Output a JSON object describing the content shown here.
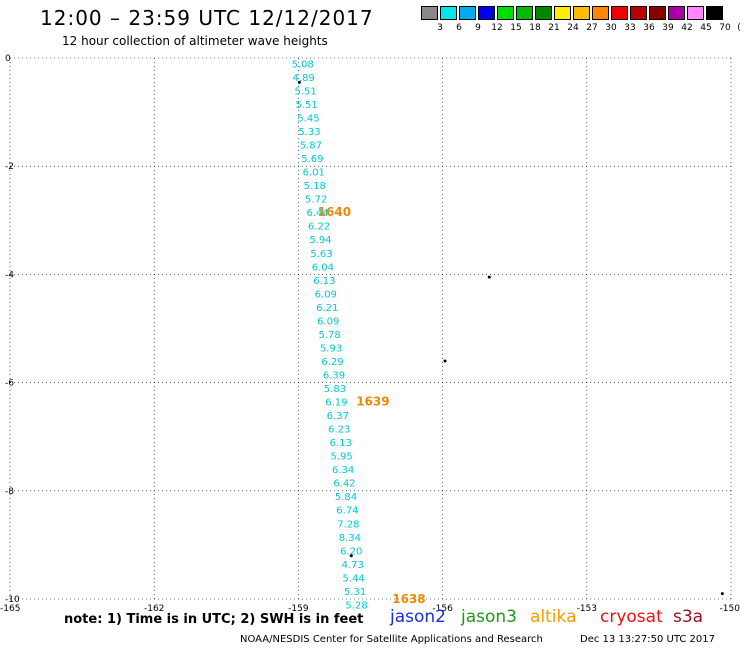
{
  "header": {
    "title": "12:00 – 23:59 UTC 12/12/2017",
    "subtitle": "12 hour collection of altimeter wave heights"
  },
  "scale": {
    "colors": [
      "#888888",
      "#00e8e8",
      "#00aaee",
      "#0000ee",
      "#00dd00",
      "#00bb00",
      "#008800",
      "#ffee00",
      "#ffbb00",
      "#ff8800",
      "#ee0000",
      "#bb0000",
      "#880000",
      "#aa00aa",
      "#ff88ff",
      "#000000"
    ],
    "labels": [
      "3",
      "6",
      "9",
      "12",
      "15",
      "18",
      "21",
      "24",
      "27",
      "30",
      "33",
      "36",
      "39",
      "42",
      "45",
      "70",
      "(ft)"
    ]
  },
  "chart_data": {
    "type": "scatter",
    "xlim": [
      -165,
      -150
    ],
    "ylim": [
      -10,
      0
    ],
    "x_tick_labels": [
      "-165",
      "-162",
      "-159",
      "-156",
      "-153",
      "-150"
    ],
    "y_tick_labels": [
      "0",
      "-2",
      "-4",
      "-6",
      "-8",
      "-10"
    ],
    "grid": true,
    "satellite": "jason3",
    "wave_heights_ft": [
      {
        "lon": -158.91,
        "lat": -0.1,
        "v": "5.08"
      },
      {
        "lon": -158.89,
        "lat": -0.35,
        "v": "4.89"
      },
      {
        "lon": -158.85,
        "lat": -0.6,
        "v": "5.51"
      },
      {
        "lon": -158.83,
        "lat": -0.85,
        "v": "5.51"
      },
      {
        "lon": -158.79,
        "lat": -1.1,
        "v": "5.45"
      },
      {
        "lon": -158.77,
        "lat": -1.35,
        "v": "5.33"
      },
      {
        "lon": -158.74,
        "lat": -1.6,
        "v": "5.87"
      },
      {
        "lon": -158.71,
        "lat": -1.85,
        "v": "5.69"
      },
      {
        "lon": -158.68,
        "lat": -2.1,
        "v": "6.01"
      },
      {
        "lon": -158.66,
        "lat": -2.35,
        "v": "5.18"
      },
      {
        "lon": -158.63,
        "lat": -2.6,
        "v": "5.72"
      },
      {
        "lon": -158.6,
        "lat": -2.85,
        "v": "6.44"
      },
      {
        "lon": -158.57,
        "lat": -3.1,
        "v": "6.22"
      },
      {
        "lon": -158.54,
        "lat": -3.35,
        "v": "5.94"
      },
      {
        "lon": -158.52,
        "lat": -3.6,
        "v": "5.63"
      },
      {
        "lon": -158.49,
        "lat": -3.85,
        "v": "6.04"
      },
      {
        "lon": -158.46,
        "lat": -4.1,
        "v": "6.13"
      },
      {
        "lon": -158.43,
        "lat": -4.35,
        "v": "6.09"
      },
      {
        "lon": -158.4,
        "lat": -4.6,
        "v": "6.21"
      },
      {
        "lon": -158.38,
        "lat": -4.85,
        "v": "6.09"
      },
      {
        "lon": -158.35,
        "lat": -5.1,
        "v": "5.78"
      },
      {
        "lon": -158.32,
        "lat": -5.35,
        "v": "5.93"
      },
      {
        "lon": -158.29,
        "lat": -5.6,
        "v": "6.29"
      },
      {
        "lon": -158.26,
        "lat": -5.85,
        "v": "6.39"
      },
      {
        "lon": -158.24,
        "lat": -6.1,
        "v": "5.83"
      },
      {
        "lon": -158.21,
        "lat": -6.35,
        "v": "6.19"
      },
      {
        "lon": -158.18,
        "lat": -6.6,
        "v": "6.37"
      },
      {
        "lon": -158.15,
        "lat": -6.85,
        "v": "6.23"
      },
      {
        "lon": -158.12,
        "lat": -7.1,
        "v": "6.13"
      },
      {
        "lon": -158.1,
        "lat": -7.35,
        "v": "5.95"
      },
      {
        "lon": -158.07,
        "lat": -7.6,
        "v": "6.34"
      },
      {
        "lon": -158.04,
        "lat": -7.85,
        "v": "6.42"
      },
      {
        "lon": -158.01,
        "lat": -8.1,
        "v": "5.84"
      },
      {
        "lon": -157.98,
        "lat": -8.35,
        "v": "6.74"
      },
      {
        "lon": -157.96,
        "lat": -8.6,
        "v": "7.28"
      },
      {
        "lon": -157.93,
        "lat": -8.85,
        "v": "8.34"
      },
      {
        "lon": -157.9,
        "lat": -9.1,
        "v": "6.20"
      },
      {
        "lon": -157.87,
        "lat": -9.35,
        "v": "4.73"
      },
      {
        "lon": -157.85,
        "lat": -9.6,
        "v": "5.44"
      },
      {
        "lon": -157.82,
        "lat": -9.85,
        "v": "5.31"
      },
      {
        "lon": -157.79,
        "lat": -10.1,
        "v": "5.28"
      }
    ],
    "time_labels": [
      {
        "lon": -158.25,
        "lat": -2.85,
        "text": "1640"
      },
      {
        "lon": -157.45,
        "lat": -6.35,
        "text": "1639"
      },
      {
        "lon": -156.7,
        "lat": -10.0,
        "text": "1638"
      }
    ],
    "land_dots": [
      {
        "lon": -158.98,
        "lat": -0.45
      },
      {
        "lon": -155.03,
        "lat": -4.05
      },
      {
        "lon": -155.95,
        "lat": -5.6
      },
      {
        "lon": -157.9,
        "lat": -9.2
      },
      {
        "lon": -150.18,
        "lat": -9.9
      }
    ]
  },
  "note": "note: 1) Time is in UTC; 2) SWH is in feet",
  "satellites": [
    {
      "name": "jason2",
      "color": "#1a2ee0"
    },
    {
      "name": "jason3",
      "color": "#1c9a1c"
    },
    {
      "name": "altika",
      "color": "#ff9900"
    },
    {
      "name": "cryosat",
      "color": "#ee1111"
    },
    {
      "name": "s3a",
      "color": "#9b1020"
    }
  ],
  "footer": {
    "center": "NOAA/NESDIS Center for Satellite Applications and Research",
    "timestamp": "Dec 13 13:27:50 UTC 2017"
  }
}
